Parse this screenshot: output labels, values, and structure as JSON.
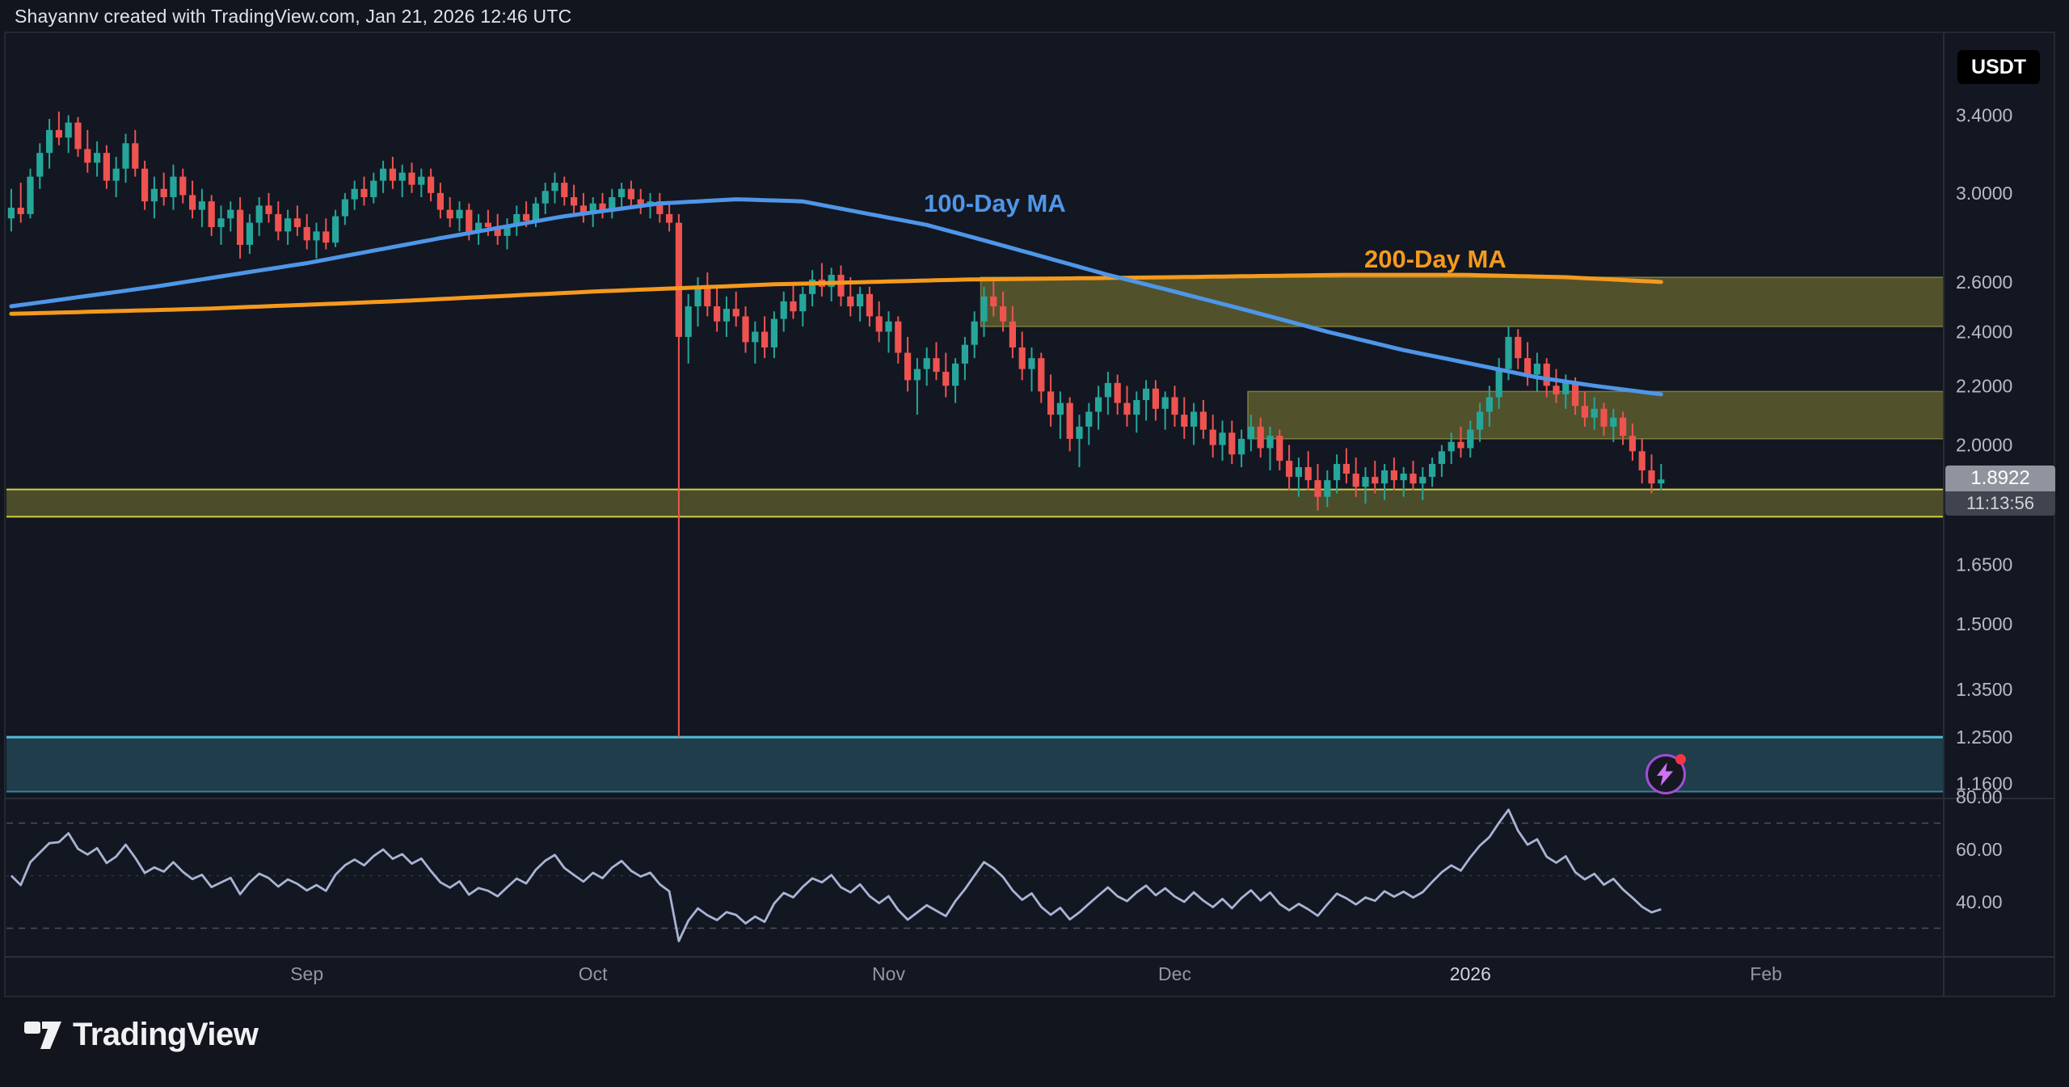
{
  "header": {
    "attribution": "Shayannv created with TradingView.com, Jan 21, 2026 12:46 UTC"
  },
  "symbol_badge": "USDT",
  "overlay_labels": {
    "ma100": "100-Day MA",
    "ma200": "200-Day MA"
  },
  "last_price": {
    "value": "1.8922",
    "countdown": "11:13:56"
  },
  "price_axis_ticks": [
    {
      "label": "3.4000",
      "price": 3.4
    },
    {
      "label": "3.0000",
      "price": 3.0
    },
    {
      "label": "2.6000",
      "price": 2.6
    },
    {
      "label": "2.4000",
      "price": 2.4
    },
    {
      "label": "2.2000",
      "price": 2.2
    },
    {
      "label": "2.0000",
      "price": 2.0
    },
    {
      "label": "1.6500",
      "price": 1.65
    },
    {
      "label": "1.5000",
      "price": 1.5
    },
    {
      "label": "1.3500",
      "price": 1.35
    },
    {
      "label": "1.2500",
      "price": 1.25
    },
    {
      "label": "1.1600",
      "price": 1.16
    }
  ],
  "rsi_axis_ticks": [
    {
      "label": "80.00",
      "value": 80
    },
    {
      "label": "60.00",
      "value": 60
    },
    {
      "label": "40.00",
      "value": 40
    }
  ],
  "time_axis_labels": [
    {
      "label": "Sep",
      "day": 31,
      "year": false
    },
    {
      "label": "Oct",
      "day": 61,
      "year": false
    },
    {
      "label": "Nov",
      "day": 92,
      "year": false
    },
    {
      "label": "Dec",
      "day": 122,
      "year": false
    },
    {
      "label": "2026",
      "day": 153,
      "year": true
    },
    {
      "label": "Feb",
      "day": 184,
      "year": false
    }
  ],
  "footer": {
    "brand": "TradingView"
  },
  "colors": {
    "bg": "#131722",
    "border": "#2a2e39",
    "up": "#26a69a",
    "down": "#ef5350",
    "ma100": "#4e96e8",
    "ma200": "#f59a1d",
    "rsi": "#a9b4d4",
    "zone_fill": "rgba(185,178,60,0.38)",
    "zone_border": "rgba(210,205,90,0.45)",
    "band_fill": "rgba(185,178,60,0.34)",
    "band_border": "#cfcf45",
    "teal_fill": "rgba(58,150,170,0.30)",
    "teal_border": "#53bdd4",
    "teal_border_bottom": "#35859a",
    "axis_text": "#b6bac3",
    "time_text": "#9298a2",
    "year_text": "#d1d4dc",
    "rsi_dash": "#4c5160",
    "rsi_mid_dash": "#343947"
  },
  "chart_data": {
    "type": "candlestick",
    "quote": "USDT",
    "interval": "1D",
    "y_scale": "log",
    "x_start": "2025-08-01",
    "last_close": 1.8922,
    "candles_ohlc": [
      [
        2.88,
        3.02,
        2.82,
        2.93
      ],
      [
        2.93,
        3.05,
        2.86,
        2.9
      ],
      [
        2.9,
        3.12,
        2.88,
        3.08
      ],
      [
        3.08,
        3.25,
        3.02,
        3.2
      ],
      [
        3.2,
        3.38,
        3.12,
        3.32
      ],
      [
        3.32,
        3.42,
        3.24,
        3.28
      ],
      [
        3.28,
        3.4,
        3.2,
        3.36
      ],
      [
        3.36,
        3.39,
        3.18,
        3.22
      ],
      [
        3.22,
        3.32,
        3.1,
        3.15
      ],
      [
        3.15,
        3.26,
        3.08,
        3.2
      ],
      [
        3.2,
        3.24,
        3.02,
        3.06
      ],
      [
        3.06,
        3.18,
        2.98,
        3.12
      ],
      [
        3.12,
        3.3,
        3.05,
        3.25
      ],
      [
        3.25,
        3.32,
        3.08,
        3.12
      ],
      [
        3.12,
        3.16,
        2.92,
        2.96
      ],
      [
        2.96,
        3.08,
        2.88,
        3.02
      ],
      [
        3.02,
        3.1,
        2.94,
        2.98
      ],
      [
        2.98,
        3.14,
        2.92,
        3.08
      ],
      [
        3.08,
        3.12,
        2.95,
        2.99
      ],
      [
        2.99,
        3.06,
        2.88,
        2.92
      ],
      [
        2.92,
        3.02,
        2.84,
        2.96
      ],
      [
        2.96,
        2.99,
        2.8,
        2.84
      ],
      [
        2.84,
        2.94,
        2.76,
        2.88
      ],
      [
        2.88,
        2.96,
        2.82,
        2.92
      ],
      [
        2.92,
        2.98,
        2.7,
        2.76
      ],
      [
        2.76,
        2.9,
        2.72,
        2.86
      ],
      [
        2.86,
        2.98,
        2.8,
        2.94
      ],
      [
        2.94,
        3.0,
        2.86,
        2.9
      ],
      [
        2.9,
        2.96,
        2.78,
        2.82
      ],
      [
        2.82,
        2.92,
        2.76,
        2.88
      ],
      [
        2.88,
        2.94,
        2.8,
        2.84
      ],
      [
        2.84,
        2.9,
        2.74,
        2.78
      ],
      [
        2.78,
        2.86,
        2.7,
        2.82
      ],
      [
        2.82,
        2.88,
        2.74,
        2.77
      ],
      [
        2.77,
        2.92,
        2.75,
        2.89
      ],
      [
        2.89,
        3.0,
        2.85,
        2.97
      ],
      [
        2.97,
        3.06,
        2.92,
        3.02
      ],
      [
        3.02,
        3.08,
        2.94,
        2.98
      ],
      [
        2.98,
        3.1,
        2.95,
        3.06
      ],
      [
        3.06,
        3.16,
        3.0,
        3.12
      ],
      [
        3.12,
        3.18,
        3.02,
        3.06
      ],
      [
        3.06,
        3.14,
        2.98,
        3.1
      ],
      [
        3.1,
        3.15,
        3.0,
        3.04
      ],
      [
        3.04,
        3.12,
        2.98,
        3.08
      ],
      [
        3.08,
        3.12,
        2.96,
        3.0
      ],
      [
        3.0,
        3.05,
        2.88,
        2.92
      ],
      [
        2.92,
        2.98,
        2.84,
        2.88
      ],
      [
        2.88,
        2.96,
        2.82,
        2.92
      ],
      [
        2.92,
        2.95,
        2.78,
        2.82
      ],
      [
        2.82,
        2.9,
        2.76,
        2.86
      ],
      [
        2.86,
        2.92,
        2.8,
        2.84
      ],
      [
        2.84,
        2.9,
        2.76,
        2.8
      ],
      [
        2.8,
        2.88,
        2.74,
        2.85
      ],
      [
        2.85,
        2.94,
        2.8,
        2.9
      ],
      [
        2.9,
        2.96,
        2.84,
        2.87
      ],
      [
        2.87,
        2.98,
        2.84,
        2.95
      ],
      [
        2.95,
        3.05,
        2.9,
        3.01
      ],
      [
        3.01,
        3.1,
        2.95,
        3.05
      ],
      [
        3.05,
        3.08,
        2.94,
        2.98
      ],
      [
        2.98,
        3.04,
        2.9,
        2.94
      ],
      [
        2.94,
        3.0,
        2.86,
        2.9
      ],
      [
        2.9,
        2.98,
        2.84,
        2.95
      ],
      [
        2.95,
        3.0,
        2.88,
        2.92
      ],
      [
        2.92,
        3.02,
        2.88,
        2.98
      ],
      [
        2.98,
        3.05,
        2.92,
        3.02
      ],
      [
        3.02,
        3.06,
        2.94,
        2.97
      ],
      [
        2.97,
        3.02,
        2.9,
        2.94
      ],
      [
        2.94,
        3.0,
        2.88,
        2.96
      ],
      [
        2.96,
        3.0,
        2.86,
        2.9
      ],
      [
        2.9,
        2.95,
        2.82,
        2.86
      ],
      [
        2.86,
        2.9,
        1.25,
        2.38
      ],
      [
        2.38,
        2.55,
        2.28,
        2.5
      ],
      [
        2.5,
        2.62,
        2.42,
        2.58
      ],
      [
        2.58,
        2.64,
        2.46,
        2.5
      ],
      [
        2.5,
        2.58,
        2.4,
        2.44
      ],
      [
        2.44,
        2.54,
        2.38,
        2.49
      ],
      [
        2.49,
        2.56,
        2.42,
        2.46
      ],
      [
        2.46,
        2.5,
        2.32,
        2.36
      ],
      [
        2.36,
        2.44,
        2.28,
        2.4
      ],
      [
        2.4,
        2.46,
        2.3,
        2.34
      ],
      [
        2.34,
        2.48,
        2.3,
        2.45
      ],
      [
        2.45,
        2.56,
        2.4,
        2.52
      ],
      [
        2.52,
        2.6,
        2.45,
        2.48
      ],
      [
        2.48,
        2.58,
        2.42,
        2.55
      ],
      [
        2.55,
        2.65,
        2.5,
        2.61
      ],
      [
        2.61,
        2.68,
        2.54,
        2.58
      ],
      [
        2.58,
        2.66,
        2.52,
        2.63
      ],
      [
        2.63,
        2.67,
        2.5,
        2.54
      ],
      [
        2.54,
        2.62,
        2.46,
        2.5
      ],
      [
        2.5,
        2.58,
        2.44,
        2.55
      ],
      [
        2.55,
        2.58,
        2.42,
        2.46
      ],
      [
        2.46,
        2.52,
        2.36,
        2.4
      ],
      [
        2.4,
        2.48,
        2.32,
        2.44
      ],
      [
        2.44,
        2.46,
        2.28,
        2.32
      ],
      [
        2.32,
        2.38,
        2.18,
        2.22
      ],
      [
        2.22,
        2.3,
        2.1,
        2.26
      ],
      [
        2.26,
        2.34,
        2.2,
        2.3
      ],
      [
        2.3,
        2.36,
        2.22,
        2.25
      ],
      [
        2.25,
        2.32,
        2.16,
        2.2
      ],
      [
        2.2,
        2.3,
        2.14,
        2.28
      ],
      [
        2.28,
        2.38,
        2.22,
        2.35
      ],
      [
        2.35,
        2.48,
        2.3,
        2.44
      ],
      [
        2.44,
        2.58,
        2.38,
        2.54
      ],
      [
        2.54,
        2.62,
        2.46,
        2.5
      ],
      [
        2.5,
        2.56,
        2.4,
        2.44
      ],
      [
        2.44,
        2.5,
        2.3,
        2.34
      ],
      [
        2.34,
        2.4,
        2.22,
        2.26
      ],
      [
        2.26,
        2.34,
        2.18,
        2.3
      ],
      [
        2.3,
        2.32,
        2.14,
        2.18
      ],
      [
        2.18,
        2.24,
        2.06,
        2.1
      ],
      [
        2.1,
        2.18,
        2.02,
        2.14
      ],
      [
        2.14,
        2.16,
        1.98,
        2.02
      ],
      [
        2.02,
        2.1,
        1.93,
        2.06
      ],
      [
        2.06,
        2.14,
        2.0,
        2.11
      ],
      [
        2.11,
        2.2,
        2.05,
        2.16
      ],
      [
        2.16,
        2.25,
        2.1,
        2.21
      ],
      [
        2.21,
        2.24,
        2.1,
        2.14
      ],
      [
        2.14,
        2.2,
        2.06,
        2.1
      ],
      [
        2.1,
        2.18,
        2.04,
        2.15
      ],
      [
        2.15,
        2.22,
        2.08,
        2.19
      ],
      [
        2.19,
        2.22,
        2.08,
        2.12
      ],
      [
        2.12,
        2.18,
        2.05,
        2.16
      ],
      [
        2.16,
        2.2,
        2.06,
        2.1
      ],
      [
        2.1,
        2.16,
        2.02,
        2.06
      ],
      [
        2.06,
        2.14,
        2.0,
        2.11
      ],
      [
        2.11,
        2.15,
        2.02,
        2.05
      ],
      [
        2.05,
        2.1,
        1.96,
        2.0
      ],
      [
        2.0,
        2.08,
        1.95,
        2.04
      ],
      [
        2.04,
        2.08,
        1.94,
        1.97
      ],
      [
        1.97,
        2.05,
        1.93,
        2.02
      ],
      [
        2.02,
        2.1,
        1.98,
        2.06
      ],
      [
        2.06,
        2.09,
        1.96,
        1.99
      ],
      [
        1.99,
        2.06,
        1.92,
        2.03
      ],
      [
        2.03,
        2.05,
        1.92,
        1.95
      ],
      [
        1.95,
        2.0,
        1.86,
        1.9
      ],
      [
        1.9,
        1.96,
        1.84,
        1.93
      ],
      [
        1.93,
        1.98,
        1.86,
        1.89
      ],
      [
        1.89,
        1.94,
        1.8,
        1.84
      ],
      [
        1.84,
        1.92,
        1.81,
        1.89
      ],
      [
        1.89,
        1.97,
        1.85,
        1.94
      ],
      [
        1.94,
        1.99,
        1.88,
        1.91
      ],
      [
        1.91,
        1.96,
        1.84,
        1.87
      ],
      [
        1.87,
        1.93,
        1.82,
        1.9
      ],
      [
        1.9,
        1.95,
        1.85,
        1.88
      ],
      [
        1.88,
        1.94,
        1.83,
        1.92
      ],
      [
        1.92,
        1.96,
        1.86,
        1.89
      ],
      [
        1.89,
        1.93,
        1.84,
        1.91
      ],
      [
        1.91,
        1.95,
        1.86,
        1.88
      ],
      [
        1.88,
        1.93,
        1.83,
        1.9
      ],
      [
        1.9,
        1.96,
        1.87,
        1.94
      ],
      [
        1.94,
        2.0,
        1.9,
        1.98
      ],
      [
        1.98,
        2.04,
        1.94,
        2.01
      ],
      [
        2.01,
        2.06,
        1.96,
        1.99
      ],
      [
        1.99,
        2.08,
        1.96,
        2.05
      ],
      [
        2.05,
        2.14,
        2.01,
        2.11
      ],
      [
        2.11,
        2.2,
        2.06,
        2.16
      ],
      [
        2.16,
        2.3,
        2.12,
        2.26
      ],
      [
        2.26,
        2.42,
        2.22,
        2.38
      ],
      [
        2.38,
        2.41,
        2.26,
        2.3
      ],
      [
        2.3,
        2.36,
        2.2,
        2.24
      ],
      [
        2.24,
        2.32,
        2.18,
        2.28
      ],
      [
        2.28,
        2.3,
        2.16,
        2.2
      ],
      [
        2.2,
        2.26,
        2.14,
        2.17
      ],
      [
        2.17,
        2.24,
        2.12,
        2.21
      ],
      [
        2.21,
        2.23,
        2.1,
        2.13
      ],
      [
        2.13,
        2.18,
        2.06,
        2.09
      ],
      [
        2.09,
        2.16,
        2.05,
        2.12
      ],
      [
        2.12,
        2.14,
        2.03,
        2.06
      ],
      [
        2.06,
        2.12,
        2.01,
        2.09
      ],
      [
        2.09,
        2.11,
        2.0,
        2.03
      ],
      [
        2.03,
        2.07,
        1.95,
        1.98
      ],
      [
        1.98,
        2.02,
        1.88,
        1.92
      ],
      [
        1.92,
        1.97,
        1.85,
        1.88
      ],
      [
        1.88,
        1.94,
        1.86,
        1.8922
      ]
    ],
    "ma100_points": [
      [
        0,
        2.5
      ],
      [
        15,
        2.58
      ],
      [
        31,
        2.68
      ],
      [
        45,
        2.79
      ],
      [
        58,
        2.89
      ],
      [
        68,
        2.95
      ],
      [
        76,
        2.97
      ],
      [
        83,
        2.96
      ],
      [
        90,
        2.9
      ],
      [
        96,
        2.85
      ],
      [
        102,
        2.78
      ],
      [
        108,
        2.71
      ],
      [
        115,
        2.63
      ],
      [
        122,
        2.56
      ],
      [
        130,
        2.48
      ],
      [
        138,
        2.4
      ],
      [
        146,
        2.33
      ],
      [
        153,
        2.28
      ],
      [
        160,
        2.23
      ],
      [
        166,
        2.2
      ],
      [
        173,
        2.17
      ]
    ],
    "ma200_points": [
      [
        0,
        2.47
      ],
      [
        20,
        2.49
      ],
      [
        40,
        2.52
      ],
      [
        61,
        2.56
      ],
      [
        80,
        2.59
      ],
      [
        100,
        2.61
      ],
      [
        122,
        2.62
      ],
      [
        140,
        2.63
      ],
      [
        152,
        2.63
      ],
      [
        163,
        2.62
      ],
      [
        173,
        2.6
      ]
    ],
    "zones": [
      {
        "name": "resistance-upper",
        "from_day": 102,
        "full_width": false,
        "top": 2.62,
        "bottom": 2.42
      },
      {
        "name": "resistance-mid",
        "from_day": 130,
        "full_width": false,
        "top": 2.18,
        "bottom": 2.02
      },
      {
        "name": "support-band",
        "from_day": 0,
        "full_width": true,
        "top": 1.862,
        "bottom": 1.782
      },
      {
        "name": "demand-teal",
        "from_day": 0,
        "full_width": true,
        "top": 1.25,
        "bottom": 1.145
      }
    ],
    "rsi": {
      "period": 14,
      "dashed_levels": [
        70,
        30
      ],
      "mid_level": 50
    }
  }
}
